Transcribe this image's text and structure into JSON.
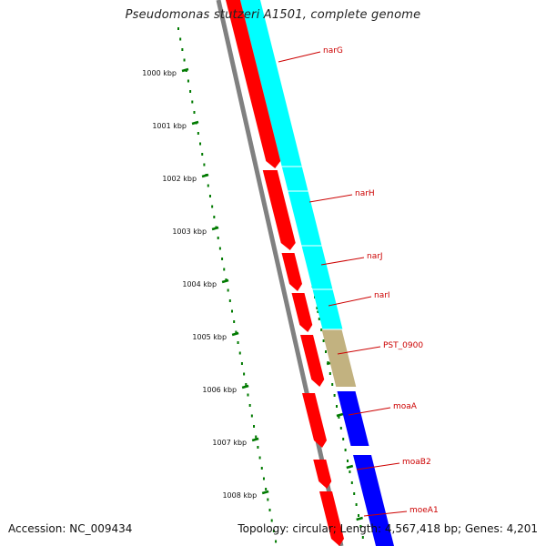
{
  "title": "Pseudomonas stutzeri A1501, complete genome",
  "accession": "Accession: NC_009434",
  "topology": "Topology: circular; Length: 4,567,418 bp; Genes: 4,201",
  "colors": {
    "backbone": "#808080",
    "cds": "#ff0000",
    "tick": "#007a00",
    "label": "#cc0000",
    "cog_cyan": "#00ffff",
    "cog_olive": "#c2b280",
    "cog_blue": "#0000ff"
  },
  "ruler": {
    "labels": [
      "1000 kbp",
      "1001 kbp",
      "1002 kbp",
      "1003 kbp",
      "1004 kbp",
      "1005 kbp",
      "1006 kbp",
      "1007 kbp",
      "1008 kbp"
    ]
  },
  "genes": [
    {
      "name": "narG",
      "category": "cog_cyan"
    },
    {
      "name": "narH",
      "category": "cog_cyan"
    },
    {
      "name": "narJ",
      "category": "cog_cyan"
    },
    {
      "name": "narI",
      "category": "cog_cyan"
    },
    {
      "name": "PST_0900",
      "category": "cog_olive"
    },
    {
      "name": "moaA",
      "category": "cog_blue"
    },
    {
      "name": "moaB2",
      "category": "cog_blue"
    },
    {
      "name": "moeA1",
      "category": "cog_blue"
    }
  ]
}
